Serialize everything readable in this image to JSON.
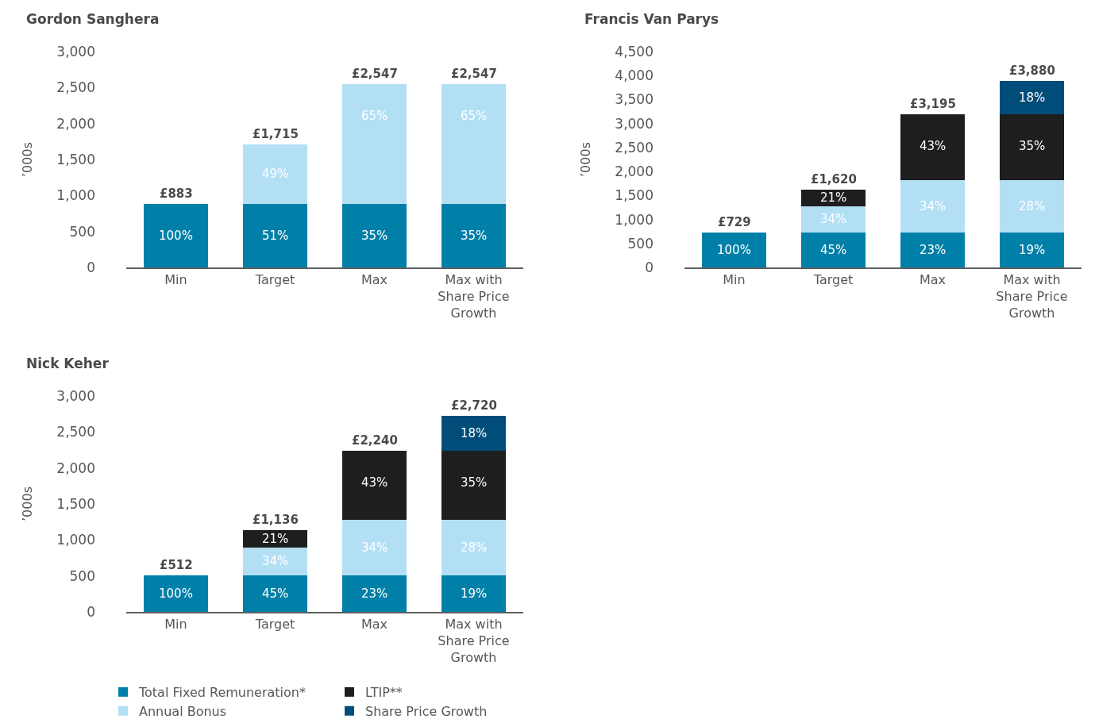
{
  "chart_data": [
    {
      "type": "bar",
      "stacked": true,
      "title": "Gordon Sanghera",
      "ylabel": "’000s",
      "categories": [
        "Min",
        "Target",
        "Max",
        "Max with Share Price Growth"
      ],
      "ylim": [
        0,
        3000
      ],
      "yticks": [
        0,
        500,
        {
          "value": 1000,
          "label": "1,000"
        },
        {
          "value": 1500,
          "label": "1,500"
        },
        {
          "value": 2000,
          "label": "2,000"
        },
        {
          "value": 2500,
          "label": "2,500"
        },
        {
          "value": 3000,
          "label": "3,000"
        }
      ],
      "series": [
        {
          "color": "#0080a8",
          "values": [
            883,
            883,
            883,
            883
          ]
        },
        {
          "color": "#b3dff5",
          "values": [
            null,
            832,
            1664,
            1664
          ]
        }
      ],
      "totals": [
        "£883",
        "£1,715",
        "£2,547",
        "£2,547"
      ],
      "annotations": [
        {
          "text": "100%",
          "x": "Min",
          "y": 883
        },
        {
          "text": "51%",
          "x": "Target",
          "y": 883
        },
        {
          "text": "35%",
          "x": "Max",
          "y": 883
        },
        {
          "text": "35%",
          "x": "Max with Share Price Growth",
          "y": 883
        },
        {
          "text": "49%",
          "x": "Target",
          "y": 1715
        },
        {
          "text": "65%",
          "x": "Max",
          "y": 2547
        },
        {
          "text": "65%",
          "x": "Max with Share Price Growth",
          "y": 2547
        }
      ]
    },
    {
      "type": "bar",
      "stacked": true,
      "title": "Francis Van Parys",
      "ylabel": "’000s",
      "categories": [
        "Min",
        "Target",
        "Max",
        "Max with Share Price Growth"
      ],
      "ylim": [
        0,
        4500
      ],
      "yticks": [
        0,
        500,
        {
          "value": 1000,
          "label": "1,000"
        },
        {
          "value": 1500,
          "label": "1,500"
        },
        {
          "value": 2000,
          "label": "2,000"
        },
        {
          "value": 2500,
          "label": "2,500"
        },
        {
          "value": 3000,
          "label": "3,000"
        },
        {
          "value": 3500,
          "label": "3,500"
        },
        {
          "value": 4000,
          "label": "4,000"
        },
        {
          "value": 4500,
          "label": "4,500"
        }
      ],
      "series": [
        {
          "color": "#0080a8",
          "values": [
            729,
            729,
            729,
            729
          ]
        },
        {
          "color": "#b3dff5",
          "values": [
            null,
            551,
            1086,
            1086
          ]
        },
        {
          "color": "#1e1e1e",
          "values": [
            null,
            340,
            1380,
            1380
          ]
        },
        {
          "color": "#004d7a",
          "values": [
            null,
            null,
            null,
            685
          ]
        }
      ],
      "totals": [
        "£729",
        "£1,620",
        "£3,195",
        "£3,880"
      ],
      "annotations": [
        {
          "text": "100%",
          "x": "Min",
          "y": 729
        },
        {
          "text": "45%",
          "x": "Target",
          "y": 729
        },
        {
          "text": "23%",
          "x": "Max",
          "y": 729
        },
        {
          "text": "19%",
          "x": "Max with Share Price Growth",
          "y": 729
        },
        {
          "text": "34%",
          "x": "Target",
          "y": 1280
        },
        {
          "text": "34%",
          "x": "Max",
          "y": 1815
        },
        {
          "text": "28%",
          "x": "Max with Share Price Growth",
          "y": 1815
        },
        {
          "text": "21%",
          "x": "Target",
          "y": 1620
        },
        {
          "text": "43%",
          "x": "Max",
          "y": 3195
        },
        {
          "text": "35%",
          "x": "Max with Share Price Growth",
          "y": 3195
        },
        {
          "text": "18%",
          "x": "Max with Share Price Growth",
          "y": 3880
        }
      ]
    },
    {
      "type": "bar",
      "stacked": true,
      "title": "Nick Keher",
      "ylabel": "’000s",
      "categories": [
        "Min",
        "Target",
        "Max",
        "Max with Share Price Growth"
      ],
      "ylim": [
        0,
        3000
      ],
      "yticks": [
        0,
        500,
        {
          "value": 1000,
          "label": "1,000"
        },
        {
          "value": 1500,
          "label": "1,500"
        },
        {
          "value": 2000,
          "label": "2,000"
        },
        {
          "value": 2500,
          "label": "2,500"
        },
        {
          "value": 3000,
          "label": "3,000"
        }
      ],
      "series": [
        {
          "name": "Total Fixed Remuneration*",
          "color": "#0080a8",
          "values": [
            512,
            512,
            512,
            512
          ]
        },
        {
          "name": "Annual Bonus",
          "color": "#b3dff5",
          "values": [
            null,
            386,
            762,
            762
          ]
        },
        {
          "name": "LTIP**",
          "color": "#1e1e1e",
          "values": [
            null,
            238,
            966,
            966
          ]
        },
        {
          "name": "Share Price Growth",
          "color": "#004d7a",
          "values": [
            null,
            null,
            null,
            480
          ]
        }
      ],
      "totals": [
        "£512",
        "£1,136",
        "£2,240",
        "£2,720"
      ],
      "legend": "bottom",
      "annotations": [
        {
          "text": "100%",
          "x": "Min",
          "y": 512
        },
        {
          "text": "45%",
          "x": "Target",
          "y": 512
        },
        {
          "text": "23%",
          "x": "Max",
          "y": 512
        },
        {
          "text": "19%",
          "x": "Max with Share Price Growth",
          "y": 512
        },
        {
          "text": "34%",
          "x": "Target",
          "y": 898
        },
        {
          "text": "34%",
          "x": "Max",
          "y": 1274
        },
        {
          "text": "28%",
          "x": "Max with Share Price Growth",
          "y": 1274
        },
        {
          "text": "21%",
          "x": "Target",
          "y": 1136
        },
        {
          "text": "43%",
          "x": "Max",
          "y": 2240
        },
        {
          "text": "35%",
          "x": "Max with Share Price Growth",
          "y": 2240
        },
        {
          "text": "18%",
          "x": "Max with Share Price Growth",
          "y": 2720
        }
      ]
    }
  ]
}
